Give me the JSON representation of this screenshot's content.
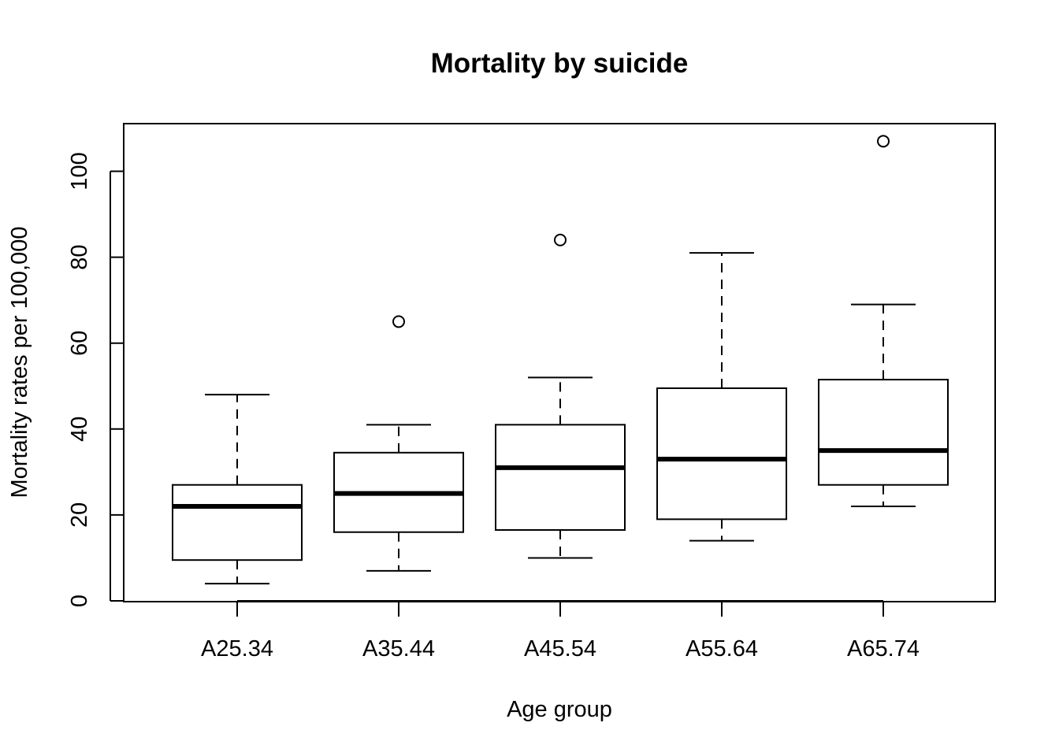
{
  "chart_data": {
    "type": "boxplot",
    "title": "Mortality by suicide",
    "xlabel": "Age group",
    "ylabel": "Mortality rates per 100,000",
    "ylim": [
      0,
      110
    ],
    "yticks": [
      0,
      20,
      40,
      60,
      80,
      100
    ],
    "grid": false,
    "categories": [
      "A25.34",
      "A35.44",
      "A45.54",
      "A55.64",
      "A65.74"
    ],
    "boxes": [
      {
        "category": "A25.34",
        "whisker_low": 4,
        "q1": 9.5,
        "median": 22,
        "q3": 27,
        "whisker_high": 48,
        "outliers": []
      },
      {
        "category": "A35.44",
        "whisker_low": 7,
        "q1": 16,
        "median": 25,
        "q3": 34.5,
        "whisker_high": 41,
        "outliers": [
          65
        ]
      },
      {
        "category": "A45.54",
        "whisker_low": 10,
        "q1": 16.5,
        "median": 31,
        "q3": 41,
        "whisker_high": 52,
        "outliers": [
          84
        ]
      },
      {
        "category": "A55.64",
        "whisker_low": 14,
        "q1": 19,
        "median": 33,
        "q3": 49.5,
        "whisker_high": 81,
        "outliers": []
      },
      {
        "category": "A65.74",
        "whisker_low": 22,
        "q1": 27,
        "median": 35,
        "q3": 51.5,
        "whisker_high": 69,
        "outliers": [
          107
        ]
      }
    ]
  }
}
